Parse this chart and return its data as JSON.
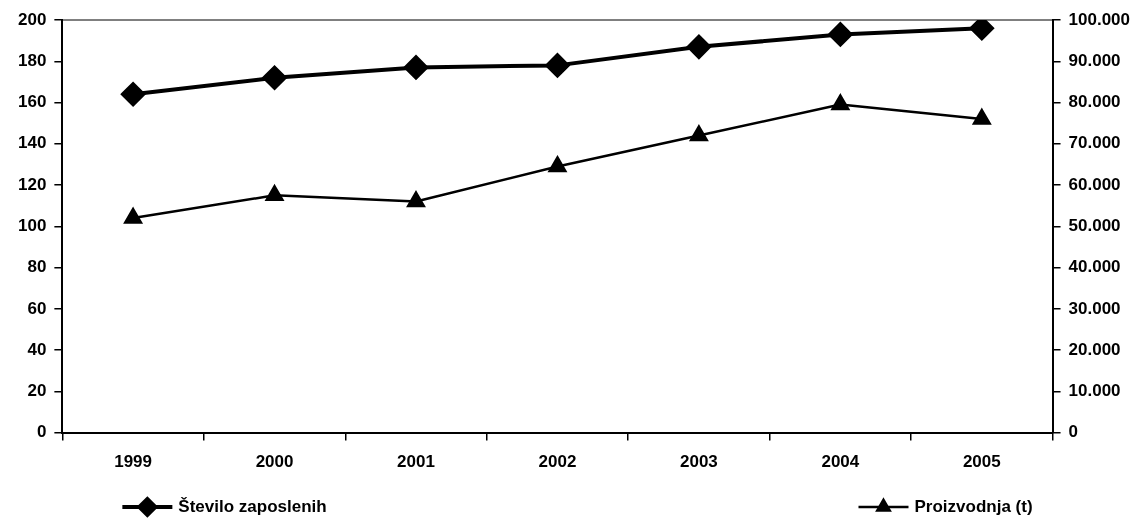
{
  "chart_data": {
    "type": "line",
    "categories": [
      "1999",
      "2000",
      "2001",
      "2002",
      "2003",
      "2004",
      "2005"
    ],
    "series": [
      {
        "name": "Število zaposlenih",
        "color": "#000000",
        "marker": "diamond",
        "values": [
          164,
          172,
          177,
          178,
          187,
          193,
          196
        ]
      },
      {
        "name": "Proizvodnja (t)",
        "color": "#000000",
        "marker": "triangle",
        "axis": "y2",
        "values": [
          52000,
          57500,
          56000,
          64500,
          72000,
          79500,
          76000
        ]
      }
    ],
    "ylim": [
      0,
      200
    ],
    "yticks": [
      0,
      20,
      40,
      60,
      80,
      100,
      120,
      140,
      160,
      180,
      200
    ],
    "y2lim": [
      0,
      100000
    ],
    "y2ticks": [
      {
        "value": 0,
        "label": "0"
      },
      {
        "value": 10000,
        "label": "10.000"
      },
      {
        "value": 20000,
        "label": "20.000"
      },
      {
        "value": 30000,
        "label": "30.000"
      },
      {
        "value": 40000,
        "label": "40.000"
      },
      {
        "value": 50000,
        "label": "50.000"
      },
      {
        "value": 60000,
        "label": "60.000"
      },
      {
        "value": 70000,
        "label": "70.000"
      },
      {
        "value": 80000,
        "label": "80.000"
      },
      {
        "value": 90000,
        "label": "90.000"
      },
      {
        "value": 100000,
        "label": "100.000"
      }
    ],
    "grid": false,
    "legend": "bottom",
    "line_style": "solid"
  }
}
